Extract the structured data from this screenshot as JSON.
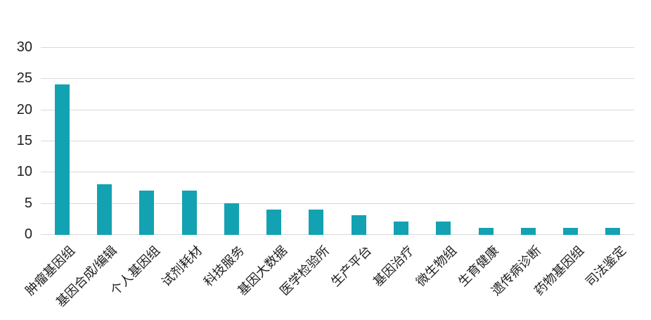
{
  "chart_data": {
    "type": "bar",
    "title": "",
    "xlabel": "",
    "ylabel": "",
    "categories": [
      "肿瘤基因组",
      "基因合成/编辑",
      "个人基因组",
      "试剂耗材",
      "科技服务",
      "基因大数据",
      "医学检验所",
      "生产平台",
      "基因治疗",
      "微生物组",
      "生育健康",
      "遗传病诊断",
      "药物基因组",
      "司法鉴定"
    ],
    "values": [
      24,
      8,
      7,
      7,
      5,
      4,
      4,
      3,
      2,
      2,
      1,
      1,
      1,
      1
    ],
    "ylim": [
      0,
      30
    ],
    "yticks": [
      0,
      5,
      10,
      15,
      20,
      25,
      30
    ],
    "grid": true,
    "legend": false,
    "colors": {
      "bar": "#13A2B2",
      "grid": "#D9D9D9",
      "text": "#1F1F1F",
      "background": "#FFFFFF"
    }
  }
}
